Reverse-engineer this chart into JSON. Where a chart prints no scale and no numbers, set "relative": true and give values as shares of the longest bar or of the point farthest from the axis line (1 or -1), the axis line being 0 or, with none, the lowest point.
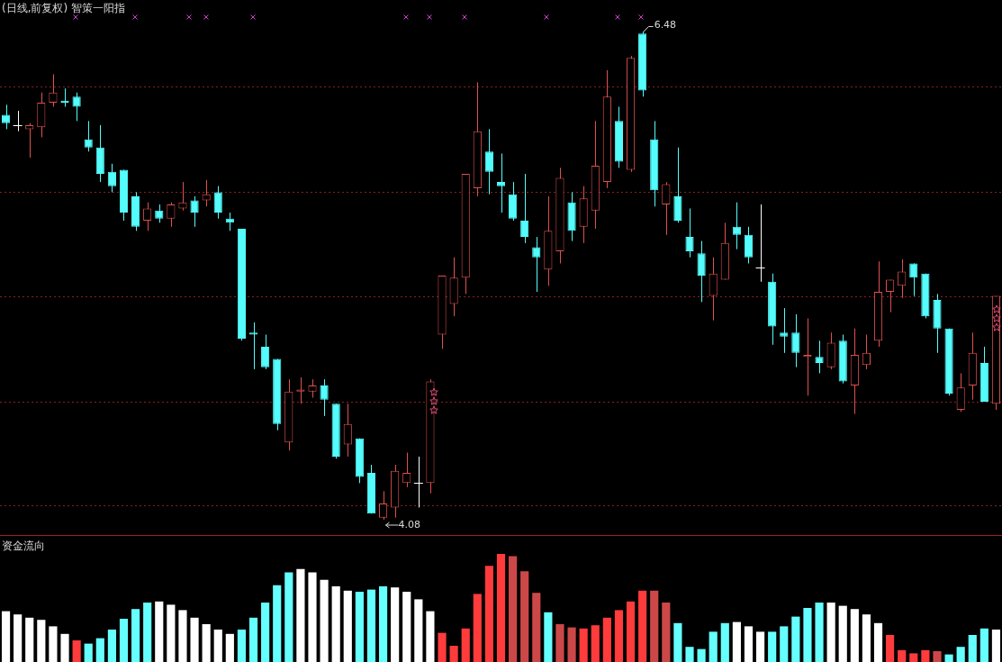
{
  "chart_data": [
    {
      "type": "candlestick",
      "title": "(日线,前复权) 智策一阳指",
      "grid": "y",
      "categories": [
        null,
        null,
        null,
        null,
        null,
        null,
        null,
        null,
        null,
        null,
        null,
        null,
        null,
        null,
        null,
        null,
        null,
        null,
        null,
        null,
        null,
        null,
        null,
        null,
        null,
        null,
        null,
        null,
        null,
        null,
        null,
        null,
        null,
        null,
        null,
        null,
        null,
        null,
        null,
        null,
        null,
        null,
        null,
        null,
        null,
        null,
        null,
        null,
        null,
        null,
        null,
        null,
        null,
        null,
        null,
        null,
        null,
        null,
        null,
        null,
        null,
        null,
        null,
        null,
        null,
        null,
        null,
        null,
        null,
        null,
        null,
        null,
        null,
        null,
        null,
        null,
        null,
        null,
        null,
        null,
        null,
        null,
        null,
        null,
        null
      ],
      "yticks": [
        {
          "value": 4.15,
          "label": null
        },
        {
          "value": 4.66,
          "label": null
        },
        {
          "value": 5.18,
          "label": null
        },
        {
          "value": 5.69,
          "label": null
        },
        {
          "value": 6.21,
          "label": null
        }
      ],
      "ohlc": [
        [
          6.07,
          6.12,
          6.0,
          6.03
        ],
        [
          6.02,
          6.09,
          5.99,
          6.02
        ],
        [
          6.0,
          6.03,
          5.86,
          6.02
        ],
        [
          6.01,
          6.18,
          5.96,
          6.13
        ],
        [
          6.13,
          6.27,
          6.11,
          6.18
        ],
        [
          6.14,
          6.2,
          6.11,
          6.13
        ],
        [
          6.16,
          6.18,
          6.04,
          6.11
        ],
        [
          5.95,
          6.04,
          5.89,
          5.91
        ],
        [
          5.91,
          6.02,
          5.74,
          5.78
        ],
        [
          5.79,
          5.83,
          5.69,
          5.72
        ],
        [
          5.8,
          5.8,
          5.55,
          5.59
        ],
        [
          5.67,
          5.69,
          5.5,
          5.52
        ],
        [
          5.55,
          5.64,
          5.5,
          5.61
        ],
        [
          5.6,
          5.63,
          5.54,
          5.56
        ],
        [
          5.56,
          5.64,
          5.52,
          5.63
        ],
        [
          5.61,
          5.74,
          5.6,
          5.64
        ],
        [
          5.65,
          5.67,
          5.52,
          5.59
        ],
        [
          5.65,
          5.75,
          5.62,
          5.68
        ],
        [
          5.69,
          5.72,
          5.56,
          5.59
        ],
        [
          5.56,
          5.59,
          5.5,
          5.54
        ],
        [
          5.51,
          5.51,
          4.96,
          4.97
        ],
        [
          5.0,
          5.05,
          4.82,
          4.99
        ],
        [
          4.93,
          4.99,
          4.82,
          4.83
        ],
        [
          4.87,
          4.87,
          4.52,
          4.55
        ],
        [
          4.46,
          4.77,
          4.42,
          4.71
        ],
        [
          4.71,
          4.78,
          4.65,
          4.72
        ],
        [
          4.71,
          4.77,
          4.68,
          4.74
        ],
        [
          4.74,
          4.77,
          4.59,
          4.67
        ],
        [
          4.65,
          4.65,
          4.38,
          4.39
        ],
        [
          4.45,
          4.65,
          4.39,
          4.55
        ],
        [
          4.48,
          4.48,
          4.26,
          4.29
        ],
        [
          4.31,
          4.35,
          4.11,
          4.11
        ],
        [
          4.09,
          4.22,
          4.08,
          4.16
        ],
        [
          4.14,
          4.35,
          4.09,
          4.32
        ],
        [
          4.26,
          4.41,
          4.24,
          4.31
        ],
        [
          4.26,
          4.39,
          4.14,
          4.26
        ],
        [
          4.26,
          4.77,
          4.21,
          4.76
        ],
        [
          4.99,
          5.28,
          4.92,
          5.28
        ],
        [
          5.14,
          5.37,
          5.08,
          5.27
        ],
        [
          5.27,
          5.78,
          5.19,
          5.78
        ],
        [
          5.71,
          6.23,
          5.67,
          5.99
        ],
        [
          5.89,
          6.0,
          5.68,
          5.79
        ],
        [
          5.74,
          5.88,
          5.59,
          5.72
        ],
        [
          5.68,
          5.74,
          5.55,
          5.56
        ],
        [
          5.55,
          5.78,
          5.44,
          5.47
        ],
        [
          5.42,
          5.47,
          5.2,
          5.37
        ],
        [
          5.31,
          5.67,
          5.23,
          5.5
        ],
        [
          5.4,
          5.81,
          5.34,
          5.76
        ],
        [
          5.64,
          5.69,
          5.45,
          5.5
        ],
        [
          5.52,
          5.72,
          5.44,
          5.66
        ],
        [
          5.6,
          6.04,
          5.51,
          5.82
        ],
        [
          5.74,
          6.29,
          5.71,
          6.16
        ],
        [
          6.04,
          6.11,
          5.81,
          5.84
        ],
        [
          5.8,
          6.36,
          5.79,
          6.35
        ],
        [
          6.47,
          6.48,
          6.16,
          6.19
        ],
        [
          5.95,
          6.04,
          5.62,
          5.7
        ],
        [
          5.63,
          5.74,
          5.48,
          5.73
        ],
        [
          5.67,
          5.91,
          5.54,
          5.55
        ],
        [
          5.47,
          5.61,
          5.37,
          5.4
        ],
        [
          5.39,
          5.45,
          5.15,
          5.28
        ],
        [
          5.18,
          5.37,
          5.06,
          5.29
        ],
        [
          5.26,
          5.54,
          5.26,
          5.44
        ],
        [
          5.52,
          5.64,
          5.41,
          5.48
        ],
        [
          5.48,
          5.52,
          5.34,
          5.37
        ],
        [
          5.32,
          5.63,
          5.25,
          5.32
        ],
        [
          5.25,
          5.29,
          4.94,
          5.03
        ],
        [
          5.0,
          5.12,
          4.9,
          4.98
        ],
        [
          5.0,
          5.09,
          4.83,
          4.9
        ],
        [
          4.88,
          5.07,
          4.69,
          4.89
        ],
        [
          4.88,
          4.96,
          4.8,
          4.85
        ],
        [
          4.83,
          5.0,
          4.82,
          4.95
        ],
        [
          4.96,
          4.99,
          4.75,
          4.76
        ],
        [
          4.74,
          5.02,
          4.6,
          4.89
        ],
        [
          4.84,
          4.99,
          4.82,
          4.9
        ],
        [
          4.96,
          5.35,
          4.93,
          5.2
        ],
        [
          5.2,
          5.26,
          5.1,
          5.26
        ],
        [
          5.23,
          5.36,
          5.17,
          5.3
        ],
        [
          5.34,
          5.34,
          5.18,
          5.27
        ],
        [
          5.29,
          5.29,
          5.07,
          5.08
        ],
        [
          5.16,
          5.19,
          4.9,
          5.02
        ],
        [
          5.02,
          5.02,
          4.69,
          4.7
        ],
        [
          4.62,
          4.8,
          4.61,
          4.73
        ],
        [
          4.74,
          5.0,
          4.67,
          4.9
        ],
        [
          4.85,
          4.93,
          4.66,
          4.66
        ],
        [
          4.65,
          5.18,
          4.62,
          5.18
        ]
      ],
      "colors": [
        "#54fcfc",
        "#ffffff",
        "#e0504e",
        "#e0504e",
        "#e0504e",
        "#54fcfc",
        "#54fcfc",
        "#54fcfc",
        "#54fcfc",
        "#54fcfc",
        "#54fcfc",
        "#54fcfc",
        "#e0504e",
        "#54fcfc",
        "#e0504e",
        "#e0504e",
        "#54fcfc",
        "#e0504e",
        "#54fcfc",
        "#54fcfc",
        "#54fcfc",
        "#54fcfc",
        "#54fcfc",
        "#54fcfc",
        "#e0504e",
        "#e0504e",
        "#e0504e",
        "#54fcfc",
        "#54fcfc",
        "#e0504e",
        "#54fcfc",
        "#54fcfc",
        "#e0504e",
        "#e0504e",
        "#e0504e",
        "#ffffff",
        "#e0504e",
        "#e0504e",
        "#e0504e",
        "#e0504e",
        "#e0504e",
        "#54fcfc",
        "#54fcfc",
        "#54fcfc",
        "#54fcfc",
        "#54fcfc",
        "#e0504e",
        "#e0504e",
        "#54fcfc",
        "#e0504e",
        "#e0504e",
        "#e0504e",
        "#54fcfc",
        "#e0504e",
        "#54fcfc",
        "#54fcfc",
        "#e0504e",
        "#54fcfc",
        "#54fcfc",
        "#54fcfc",
        "#e0504e",
        "#e0504e",
        "#54fcfc",
        "#54fcfc",
        "#ffffff",
        "#54fcfc",
        "#54fcfc",
        "#54fcfc",
        "#e0504e",
        "#54fcfc",
        "#e0504e",
        "#54fcfc",
        "#e0504e",
        "#e0504e",
        "#e0504e",
        "#e0504e",
        "#e0504e",
        "#54fcfc",
        "#54fcfc",
        "#54fcfc",
        "#54fcfc",
        "#e0504e",
        "#e0504e",
        "#54fcfc",
        "#e0504e"
      ],
      "annotations": [
        "6.48",
        "4.08"
      ]
    },
    {
      "type": "bar",
      "title": "资金流向",
      "relative": true,
      "categories": [
        null,
        null,
        null,
        null,
        null,
        null,
        null,
        null,
        null,
        null,
        null,
        null,
        null,
        null,
        null,
        null,
        null,
        null,
        null,
        null,
        null,
        null,
        null,
        null,
        null,
        null,
        null,
        null,
        null,
        null,
        null,
        null,
        null,
        null,
        null,
        null,
        null,
        null,
        null,
        null,
        null,
        null,
        null,
        null,
        null,
        null,
        null,
        null,
        null,
        null,
        null,
        null,
        null,
        null,
        null,
        null,
        null,
        null,
        null,
        null,
        null,
        null,
        null,
        null,
        null,
        null,
        null,
        null,
        null,
        null,
        null,
        null,
        null,
        null,
        null,
        null,
        null,
        null,
        null,
        null,
        null,
        null,
        null,
        null,
        null
      ],
      "values": [
        0.47,
        0.44,
        0.41,
        0.39,
        0.33,
        0.26,
        0.2,
        0.17,
        0.22,
        0.3,
        0.4,
        0.49,
        0.55,
        0.56,
        0.53,
        0.48,
        0.41,
        0.35,
        0.3,
        0.26,
        0.3,
        0.41,
        0.55,
        0.71,
        0.83,
        0.86,
        0.83,
        0.76,
        0.7,
        0.66,
        0.65,
        0.67,
        0.7,
        0.69,
        0.65,
        0.58,
        0.47,
        0.27,
        0.15,
        0.31,
        0.63,
        0.89,
        1,
        0.98,
        0.84,
        0.64,
        0.46,
        0.35,
        0.32,
        0.31,
        0.34,
        0.41,
        0.48,
        0.56,
        0.66,
        0.66,
        0.55,
        0.36,
        0.14,
        0.12,
        0.28,
        0.36,
        0.37,
        0.33,
        0.28,
        0.28,
        0.33,
        0.42,
        0.5,
        0.55,
        0.55,
        0.52,
        0.49,
        0.44,
        0.36,
        0.25,
        0.11,
        0.08,
        0.11,
        0.1,
        0.07,
        0.14,
        0.25,
        0.31,
        0.3
      ],
      "colors": [
        "#ffffff",
        "#ffffff",
        "#ffffff",
        "#ffffff",
        "#ffffff",
        "#ffffff",
        "#ff3b3b",
        "#66ffff",
        "#66ffff",
        "#66ffff",
        "#66ffff",
        "#66ffff",
        "#66ffff",
        "#ffffff",
        "#ffffff",
        "#ffffff",
        "#ffffff",
        "#ffffff",
        "#ffffff",
        "#ffffff",
        "#66ffff",
        "#66ffff",
        "#66ffff",
        "#66ffff",
        "#66ffff",
        "#ffffff",
        "#ffffff",
        "#ffffff",
        "#ffffff",
        "#ffffff",
        "#66ffff",
        "#66ffff",
        "#66ffff",
        "#ffffff",
        "#ffffff",
        "#ffffff",
        "#ffffff",
        "#ff3b3b",
        "#ff3b3b",
        "#ff3b3b",
        "#ff3b3b",
        "#ff3b3b",
        "#ff3b3b",
        "#cc4848",
        "#cc4848",
        "#cc4848",
        "#66ffff",
        "#cc4848",
        "#cc4848",
        "#ff3b3b",
        "#ff3b3b",
        "#ff3b3b",
        "#ff3b3b",
        "#ff3b3b",
        "#ff3b3b",
        "#cc4848",
        "#cc4848",
        "#66ffff",
        "#66ffff",
        "#66ffff",
        "#66ffff",
        "#66ffff",
        "#ffffff",
        "#ffffff",
        "#ffffff",
        "#66ffff",
        "#66ffff",
        "#66ffff",
        "#66ffff",
        "#66ffff",
        "#ffffff",
        "#ffffff",
        "#ffffff",
        "#ffffff",
        "#ffffff",
        "#ff3b3b",
        "#ff3b3b",
        "#ff3b3b",
        "#ff3b3b",
        "#cc4848",
        "#66ffff",
        "#66ffff",
        "#66ffff",
        "#66ffff",
        "#ffffff"
      ]
    }
  ]
}
